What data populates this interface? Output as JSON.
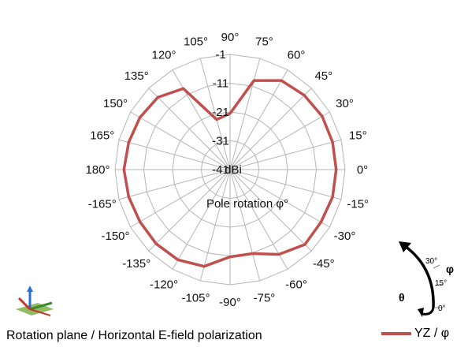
{
  "chart_data": {
    "type": "polar",
    "center_label": "dBi",
    "inner_label": "Pole rotation φ°",
    "caption": "Rotation plane / Horizontal E-field polarization",
    "radial_ticks": [
      -41,
      -31,
      -21,
      -11,
      -1
    ],
    "rlim": [
      -41,
      -1
    ],
    "angular_ticks": [
      "0°",
      "15°",
      "30°",
      "45°",
      "60°",
      "75°",
      "90°",
      "105°",
      "120°",
      "135°",
      "150°",
      "165°",
      "180°",
      "-165°",
      "-150°",
      "-135°",
      "-120°",
      "-105°",
      "-90°",
      "-75°",
      "-60°",
      "-45°",
      "-30°",
      "-15°"
    ],
    "angular_tick_degrees": [
      0,
      15,
      30,
      45,
      60,
      75,
      90,
      105,
      120,
      135,
      150,
      165,
      180,
      -165,
      -150,
      -135,
      -120,
      -105,
      -90,
      -75,
      -60,
      -45,
      -30,
      -15
    ],
    "grid": true,
    "series": [
      {
        "name": "YZ / φ",
        "color": "#c0504d",
        "angles": [
          0,
          15,
          30,
          45,
          60,
          75,
          90,
          105,
          120,
          135,
          150,
          165,
          180,
          -165,
          -150,
          -135,
          -120,
          -105,
          -90,
          -75,
          -60,
          -45,
          -30,
          -15
        ],
        "values": [
          -4.1,
          -4.1,
          -4.0,
          -4.5,
          -5.3,
          -9.0,
          -21.5,
          -23.0,
          -8.5,
          -5.5,
          -4.8,
          -4.5,
          -4.1,
          -4.5,
          -4.8,
          -4.6,
          -4.8,
          -6.2,
          -10.7,
          -10.8,
          -7.0,
          -4.2,
          -4.5,
          -4.1
        ]
      }
    ]
  },
  "legend": {
    "label": "YZ / φ",
    "color": "#c0504d"
  },
  "rotation_icon": {
    "theta_label": "θ",
    "phi_label": "φ",
    "ticks": [
      "30°",
      "15°",
      "0°"
    ]
  }
}
